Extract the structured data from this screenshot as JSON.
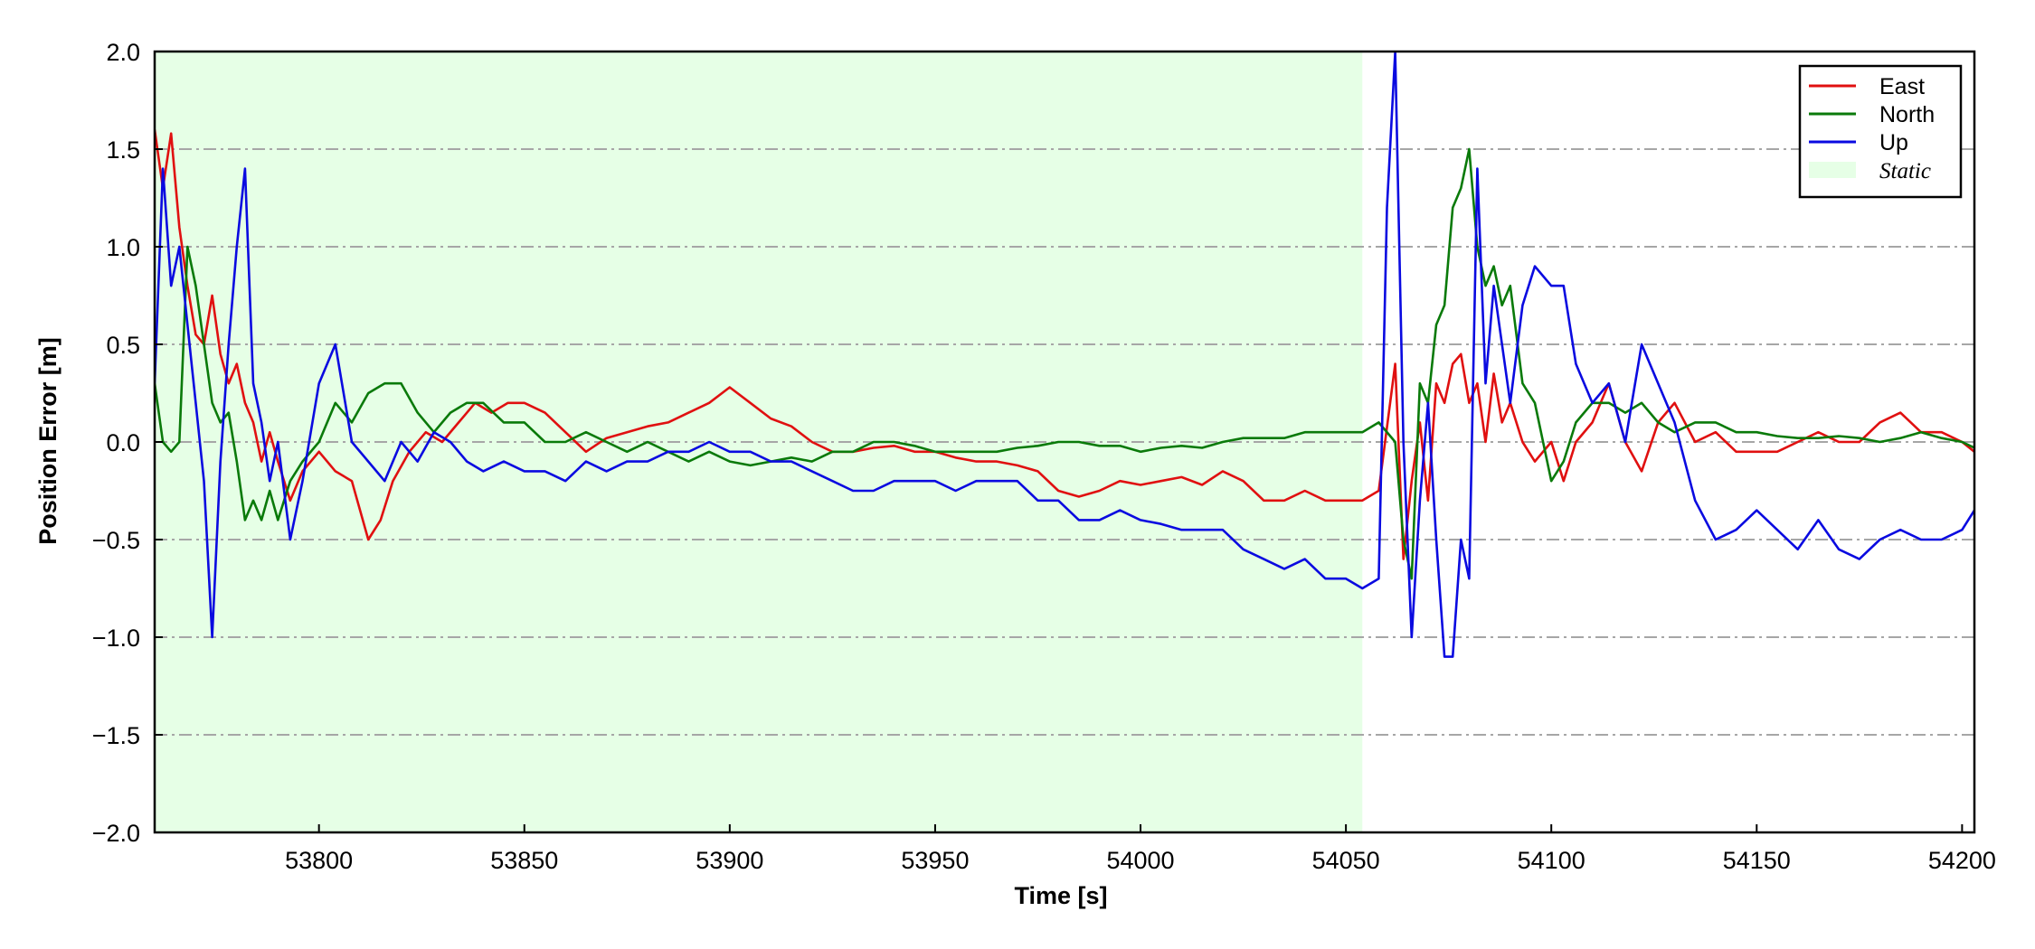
{
  "chart_data": {
    "type": "line",
    "xlabel": "Time [s]",
    "ylabel": "Position Error [m]",
    "xlim": [
      53760,
      54203
    ],
    "ylim": [
      -2.0,
      2.0
    ],
    "x_ticks": [
      53800,
      53850,
      53900,
      53950,
      54000,
      54050,
      54100,
      54150,
      54200
    ],
    "x_tick_labels": [
      "53800",
      "53850",
      "53900",
      "53950",
      "54000",
      "54050",
      "54100",
      "54150",
      "54200"
    ],
    "y_ticks": [
      -2.0,
      -1.5,
      -1.0,
      -0.5,
      0.0,
      0.5,
      1.0,
      1.5,
      2.0
    ],
    "y_tick_labels": [
      "−2.0",
      "−1.5",
      "−1.0",
      "−0.5",
      "0.0",
      "0.5",
      "1.0",
      "1.5",
      "2.0"
    ],
    "grid": "horizontal dash-dot",
    "legend_position": "top-right",
    "shaded_region": {
      "label": "Static",
      "x_start": 53760,
      "x_end": 54054,
      "color": "#e6ffe6"
    },
    "series": [
      {
        "name": "East",
        "color": "#e01010",
        "x": [
          53760,
          53762,
          53764,
          53766,
          53768,
          53770,
          53772,
          53774,
          53776,
          53778,
          53780,
          53782,
          53784,
          53786,
          53788,
          53790,
          53793,
          53796,
          53800,
          53804,
          53808,
          53812,
          53815,
          53818,
          53822,
          53826,
          53830,
          53834,
          53838,
          53842,
          53846,
          53850,
          53855,
          53860,
          53865,
          53870,
          53875,
          53880,
          53885,
          53890,
          53895,
          53900,
          53905,
          53910,
          53915,
          53920,
          53925,
          53930,
          53935,
          53940,
          53945,
          53950,
          53955,
          53960,
          53965,
          53970,
          53975,
          53980,
          53985,
          53990,
          53995,
          54000,
          54005,
          54010,
          54015,
          54020,
          54025,
          54030,
          54035,
          54040,
          54045,
          54050,
          54054,
          54058,
          54062,
          54064,
          54066,
          54068,
          54070,
          54072,
          54074,
          54076,
          54078,
          54080,
          54082,
          54084,
          54086,
          54088,
          54090,
          54093,
          54096,
          54100,
          54103,
          54106,
          54110,
          54114,
          54118,
          54122,
          54126,
          54130,
          54135,
          54140,
          54145,
          54150,
          54155,
          54160,
          54165,
          54170,
          54175,
          54180,
          54185,
          54190,
          54195,
          54200,
          54203
        ],
        "y": [
          1.6,
          1.3,
          1.58,
          1.1,
          0.8,
          0.55,
          0.5,
          0.75,
          0.45,
          0.3,
          0.4,
          0.2,
          0.1,
          -0.1,
          0.05,
          -0.1,
          -0.3,
          -0.15,
          -0.05,
          -0.15,
          -0.2,
          -0.5,
          -0.4,
          -0.2,
          -0.05,
          0.05,
          0.0,
          0.1,
          0.2,
          0.15,
          0.2,
          0.2,
          0.15,
          0.05,
          -0.05,
          0.02,
          0.05,
          0.08,
          0.1,
          0.15,
          0.2,
          0.28,
          0.2,
          0.12,
          0.08,
          0.0,
          -0.05,
          -0.05,
          -0.03,
          -0.02,
          -0.05,
          -0.05,
          -0.08,
          -0.1,
          -0.1,
          -0.12,
          -0.15,
          -0.25,
          -0.28,
          -0.25,
          -0.2,
          -0.22,
          -0.2,
          -0.18,
          -0.22,
          -0.15,
          -0.2,
          -0.3,
          -0.3,
          -0.25,
          -0.3,
          -0.3,
          -0.3,
          -0.25,
          0.4,
          -0.6,
          -0.2,
          0.1,
          -0.3,
          0.3,
          0.2,
          0.4,
          0.45,
          0.2,
          0.3,
          0.0,
          0.35,
          0.1,
          0.2,
          0.0,
          -0.1,
          0.0,
          -0.2,
          0.0,
          0.1,
          0.3,
          0.0,
          -0.15,
          0.1,
          0.2,
          0.0,
          0.05,
          -0.05,
          -0.05,
          -0.05,
          0.0,
          0.05,
          0.0,
          0.0,
          0.1,
          0.15,
          0.05,
          0.05,
          0.0,
          -0.05
        ]
      },
      {
        "name": "North",
        "color": "#0a7a0a",
        "x": [
          53760,
          53762,
          53764,
          53766,
          53768,
          53770,
          53772,
          53774,
          53776,
          53778,
          53780,
          53782,
          53784,
          53786,
          53788,
          53790,
          53793,
          53796,
          53800,
          53804,
          53808,
          53812,
          53816,
          53820,
          53824,
          53828,
          53832,
          53836,
          53840,
          53845,
          53850,
          53855,
          53860,
          53865,
          53870,
          53875,
          53880,
          53885,
          53890,
          53895,
          53900,
          53905,
          53910,
          53915,
          53920,
          53925,
          53930,
          53935,
          53940,
          53945,
          53950,
          53955,
          53960,
          53965,
          53970,
          53975,
          53980,
          53985,
          53990,
          53995,
          54000,
          54005,
          54010,
          54015,
          54020,
          54025,
          54030,
          54035,
          54040,
          54045,
          54050,
          54054,
          54058,
          54062,
          54064,
          54066,
          54068,
          54070,
          54072,
          54074,
          54076,
          54078,
          54080,
          54082,
          54084,
          54086,
          54088,
          54090,
          54093,
          54096,
          54100,
          54103,
          54106,
          54110,
          54114,
          54118,
          54122,
          54126,
          54130,
          54135,
          54140,
          54145,
          54150,
          54155,
          54160,
          54165,
          54170,
          54175,
          54180,
          54185,
          54190,
          54195,
          54200,
          54203
        ],
        "y": [
          0.3,
          0.0,
          -0.05,
          0.0,
          1.0,
          0.8,
          0.5,
          0.2,
          0.1,
          0.15,
          -0.1,
          -0.4,
          -0.3,
          -0.4,
          -0.25,
          -0.4,
          -0.2,
          -0.1,
          0.0,
          0.2,
          0.1,
          0.25,
          0.3,
          0.3,
          0.15,
          0.05,
          0.15,
          0.2,
          0.2,
          0.1,
          0.1,
          0.0,
          0.0,
          0.05,
          0.0,
          -0.05,
          0.0,
          -0.05,
          -0.1,
          -0.05,
          -0.1,
          -0.12,
          -0.1,
          -0.08,
          -0.1,
          -0.05,
          -0.05,
          0.0,
          0.0,
          -0.02,
          -0.05,
          -0.05,
          -0.05,
          -0.05,
          -0.03,
          -0.02,
          0.0,
          0.0,
          -0.02,
          -0.02,
          -0.05,
          -0.03,
          -0.02,
          -0.03,
          0.0,
          0.02,
          0.02,
          0.02,
          0.05,
          0.05,
          0.05,
          0.05,
          0.1,
          0.0,
          -0.5,
          -0.7,
          0.3,
          0.2,
          0.6,
          0.7,
          1.2,
          1.3,
          1.5,
          1.0,
          0.8,
          0.9,
          0.7,
          0.8,
          0.3,
          0.2,
          -0.2,
          -0.1,
          0.1,
          0.2,
          0.2,
          0.15,
          0.2,
          0.1,
          0.05,
          0.1,
          0.1,
          0.05,
          0.05,
          0.03,
          0.02,
          0.02,
          0.03,
          0.02,
          0.0,
          0.02,
          0.05,
          0.02,
          0.0,
          -0.03
        ]
      },
      {
        "name": "Up",
        "color": "#0a0ae0",
        "x": [
          53760,
          53762,
          53764,
          53766,
          53768,
          53770,
          53772,
          53774,
          53776,
          53778,
          53780,
          53782,
          53784,
          53786,
          53788,
          53790,
          53793,
          53796,
          53800,
          53804,
          53808,
          53812,
          53816,
          53820,
          53824,
          53828,
          53832,
          53836,
          53840,
          53845,
          53850,
          53855,
          53860,
          53865,
          53870,
          53875,
          53880,
          53885,
          53890,
          53895,
          53900,
          53905,
          53910,
          53915,
          53920,
          53925,
          53930,
          53935,
          53940,
          53945,
          53950,
          53955,
          53960,
          53965,
          53970,
          53975,
          53980,
          53985,
          53990,
          53995,
          54000,
          54005,
          54010,
          54015,
          54020,
          54025,
          54030,
          54035,
          54040,
          54045,
          54050,
          54054,
          54058,
          54060,
          54062,
          54064,
          54066,
          54068,
          54070,
          54072,
          54074,
          54076,
          54078,
          54080,
          54082,
          54084,
          54086,
          54088,
          54090,
          54093,
          54096,
          54100,
          54103,
          54106,
          54110,
          54114,
          54118,
          54122,
          54126,
          54130,
          54135,
          54140,
          54145,
          54150,
          54155,
          54160,
          54165,
          54170,
          54175,
          54180,
          54185,
          54190,
          54195,
          54200,
          54203
        ],
        "y": [
          0.3,
          1.4,
          0.8,
          1.0,
          0.6,
          0.2,
          -0.2,
          -1.0,
          -0.1,
          0.5,
          1.0,
          1.4,
          0.3,
          0.1,
          -0.2,
          0.0,
          -0.5,
          -0.2,
          0.3,
          0.5,
          0.0,
          -0.1,
          -0.2,
          0.0,
          -0.1,
          0.05,
          0.0,
          -0.1,
          -0.15,
          -0.1,
          -0.15,
          -0.15,
          -0.2,
          -0.1,
          -0.15,
          -0.1,
          -0.1,
          -0.05,
          -0.05,
          0.0,
          -0.05,
          -0.05,
          -0.1,
          -0.1,
          -0.15,
          -0.2,
          -0.25,
          -0.25,
          -0.2,
          -0.2,
          -0.2,
          -0.25,
          -0.2,
          -0.2,
          -0.2,
          -0.3,
          -0.3,
          -0.4,
          -0.4,
          -0.35,
          -0.4,
          -0.42,
          -0.45,
          -0.45,
          -0.45,
          -0.55,
          -0.6,
          -0.65,
          -0.6,
          -0.7,
          -0.7,
          -0.75,
          -0.7,
          1.2,
          2.0,
          0.0,
          -1.0,
          -0.3,
          0.2,
          -0.5,
          -1.1,
          -1.1,
          -0.5,
          -0.7,
          1.4,
          0.3,
          0.8,
          0.5,
          0.2,
          0.7,
          0.9,
          0.8,
          0.8,
          0.4,
          0.2,
          0.3,
          0.0,
          0.5,
          0.3,
          0.1,
          -0.3,
          -0.5,
          -0.45,
          -0.35,
          -0.45,
          -0.55,
          -0.4,
          -0.55,
          -0.6,
          -0.5,
          -0.45,
          -0.5,
          -0.5,
          -0.45,
          -0.35
        ]
      }
    ]
  }
}
